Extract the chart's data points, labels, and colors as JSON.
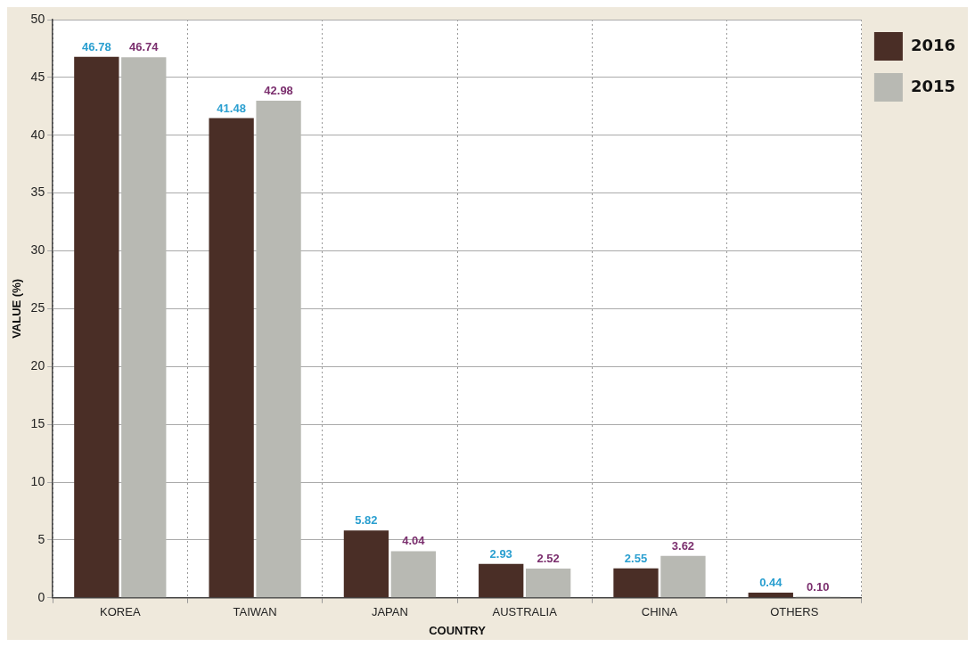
{
  "chart_data": {
    "type": "bar",
    "xlabel": "COUNTRY",
    "ylabel": "VALUE (%)",
    "categories": [
      "KOREA",
      "TAIWAN",
      "JAPAN",
      "AUSTRALIA",
      "CHINA",
      "OTHERS"
    ],
    "series": [
      {
        "name": "2016",
        "color": "#4a2e26",
        "values": [
          46.78,
          41.48,
          5.82,
          2.93,
          2.55,
          0.44
        ],
        "value_labels": [
          "46.78",
          "41.48",
          "5.82",
          "2.93",
          "2.55",
          "0.44"
        ]
      },
      {
        "name": "2015",
        "color": "#b8b9b3",
        "values": [
          46.74,
          42.98,
          4.04,
          2.52,
          3.62,
          0.1
        ],
        "value_labels": [
          "46.74",
          "42.98",
          "4.04",
          "2.52",
          "3.62",
          "0.10"
        ]
      }
    ],
    "ylim": [
      0,
      50
    ],
    "yticks": [
      0,
      5,
      10,
      15,
      20,
      25,
      30,
      35,
      40,
      45,
      50
    ],
    "grid": true,
    "legend": "top right"
  }
}
